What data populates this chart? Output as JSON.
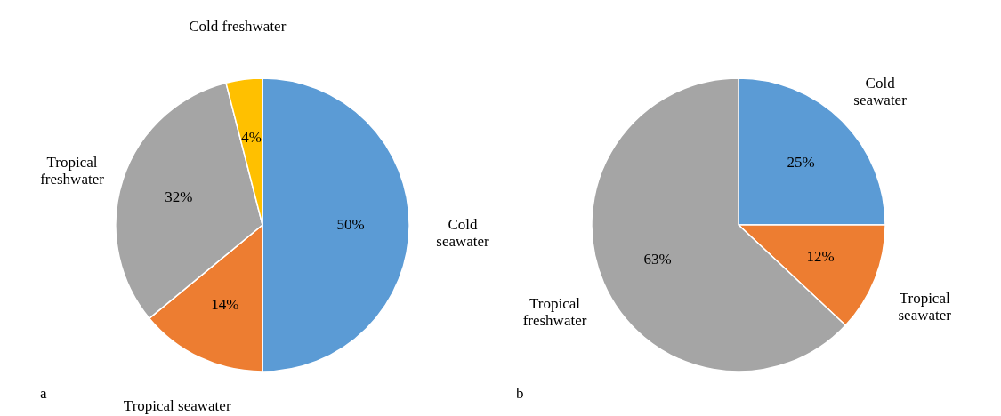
{
  "chart_data": [
    {
      "type": "pie",
      "categories": [
        "Cold seawater",
        "Tropical seawater",
        "Tropical freshwater",
        "Cold freshwater"
      ],
      "values": [
        50,
        14,
        32,
        4
      ],
      "value_labels": [
        "50%",
        "14%",
        "32%",
        "4%"
      ],
      "colors": [
        "#5b9bd5",
        "#ed7d31",
        "#a5a5a5",
        "#ffc000"
      ],
      "annotations": [
        "a"
      ],
      "legend": false
    },
    {
      "type": "pie",
      "categories": [
        "Cold seawater",
        "Tropical seawater",
        "Tropical freshwater"
      ],
      "values": [
        25,
        12,
        63
      ],
      "value_labels": [
        "25%",
        "12%",
        "63%"
      ],
      "colors": [
        "#5b9bd5",
        "#ed7d31",
        "#a5a5a5"
      ],
      "annotations": [
        "b"
      ],
      "legend": false
    }
  ]
}
